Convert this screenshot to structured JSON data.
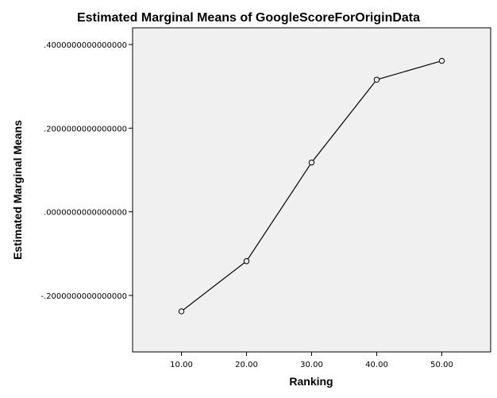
{
  "chart_data": {
    "type": "line",
    "title": "Estimated Marginal Means of GoogleScoreForOriginData",
    "xlabel": "Ranking",
    "ylabel": "Estimated Marginal Means",
    "x": [
      10,
      20,
      30,
      40,
      50
    ],
    "x_tick_labels": [
      "10.00",
      "20.00",
      "30.00",
      "40.00",
      "50.00"
    ],
    "xlim": [
      2.5,
      57.5
    ],
    "series": [
      {
        "values": [
          -0.238,
          -0.118,
          0.118,
          0.316,
          0.361
        ]
      }
    ],
    "y_ticks": [
      -0.2,
      0.0,
      0.2,
      0.4
    ],
    "y_tick_labels": [
      "-.2000000000000000",
      ".0000000000000000",
      ".2000000000000000",
      ".4000000000000000"
    ],
    "ylim": [
      -0.335,
      0.44
    ],
    "grid": false,
    "marker": "open-circle",
    "colors": {
      "plot_background": "#f0f0f0",
      "line": "#000000",
      "frame": "#000000"
    }
  }
}
